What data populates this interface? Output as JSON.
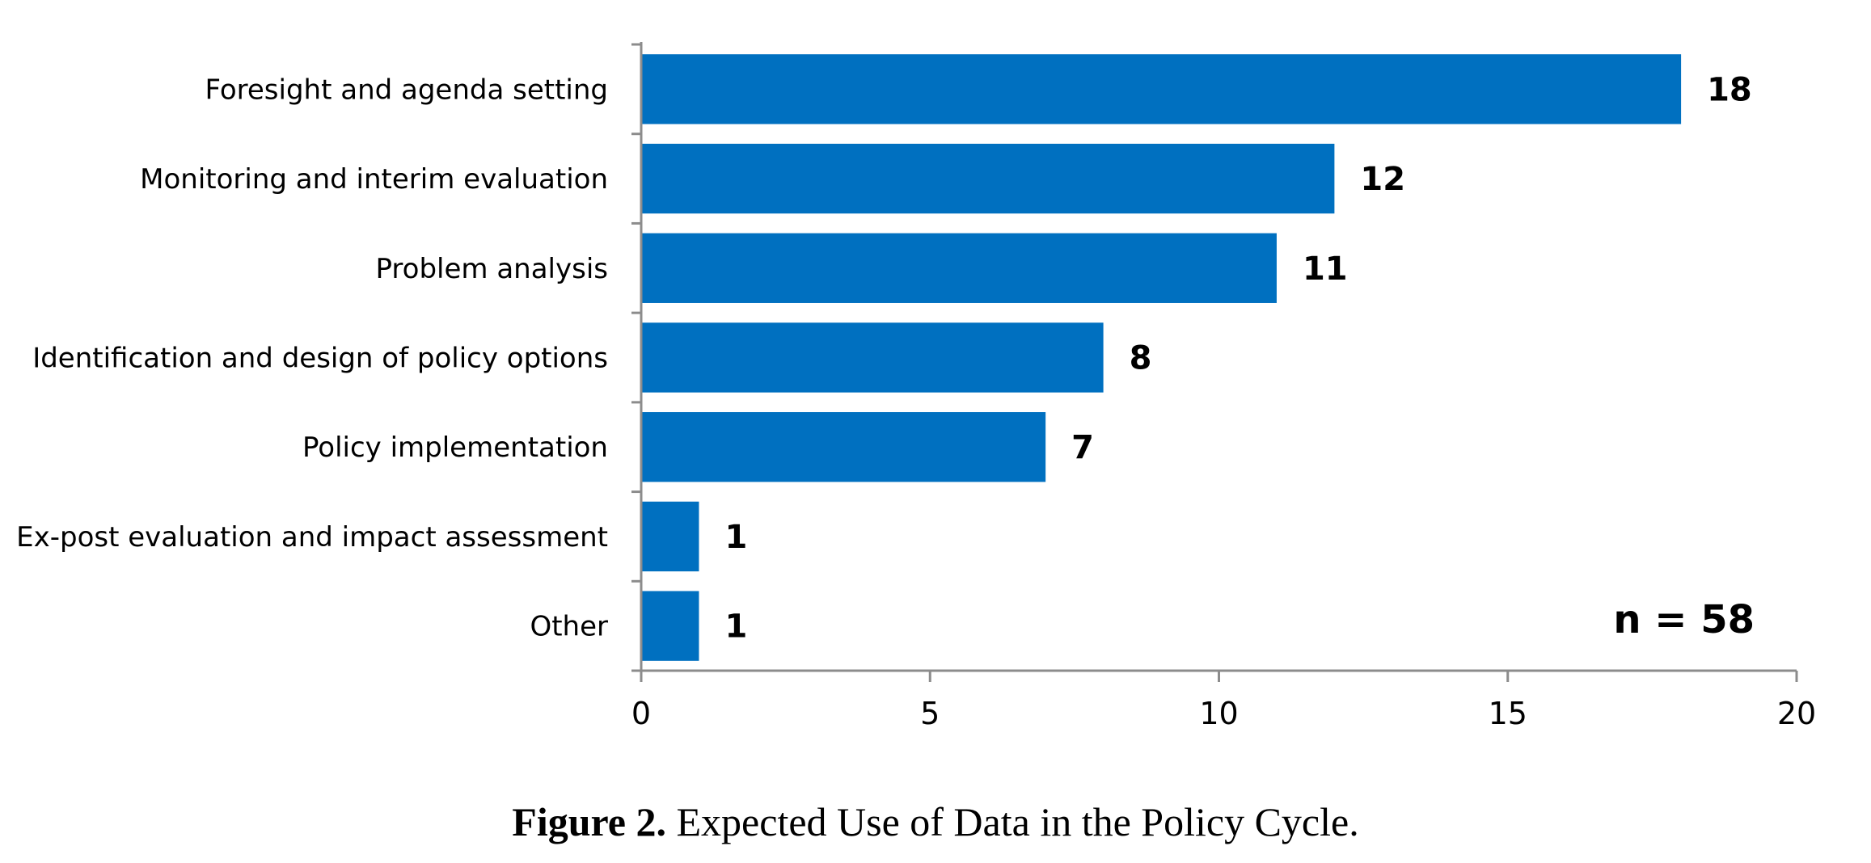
{
  "chart_data": {
    "type": "bar",
    "orientation": "horizontal",
    "categories": [
      "Foresight and agenda setting",
      "Monitoring and interim evaluation",
      "Problem analysis",
      "Identification and design of policy options",
      "Policy implementation",
      "Ex-post evaluation and impact assessment",
      "Other"
    ],
    "values": [
      18,
      12,
      11,
      8,
      7,
      1,
      1
    ],
    "xlim": [
      0,
      20
    ],
    "xticks": [
      0,
      5,
      10,
      15,
      20
    ],
    "grid": false,
    "legend": "none",
    "annotation": "n = 58",
    "bar_color": "#0070C0"
  },
  "caption": {
    "number": "Figure 2.",
    "text": "Expected Use of Data in the Policy Cycle."
  }
}
